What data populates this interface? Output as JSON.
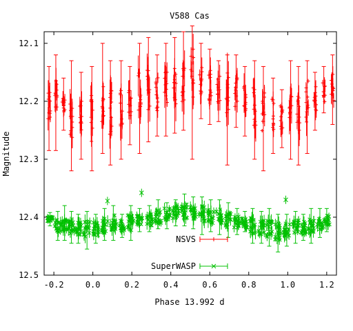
{
  "chart_data": {
    "type": "scatter",
    "title": "V588 Cas",
    "xlabel": "Phase 13.992 d",
    "ylabel": "Magnitude",
    "xlim": [
      -0.25,
      1.25
    ],
    "ylim": [
      12.5,
      12.08
    ],
    "y_inverted": true,
    "xticks": [
      -0.2,
      0.0,
      0.2,
      0.4,
      0.6,
      0.8,
      1.0,
      1.2
    ],
    "xtick_labels": [
      "-0.2",
      "0.0",
      "0.2",
      "0.4",
      "0.6",
      "0.8",
      "1.0",
      "1.2"
    ],
    "yticks": [
      12.1,
      12.2,
      12.3,
      12.4,
      12.5
    ],
    "ytick_labels": [
      "12.1",
      "12.2",
      "12.3",
      "12.4",
      "12.5"
    ],
    "grid": false,
    "legend_position": "bottom-center",
    "series": [
      {
        "name": "NSVS",
        "color": "#ff0000",
        "marker": "plus",
        "error_bars": true,
        "clusters": [
          {
            "x": -0.225,
            "y": 12.205,
            "low": 12.14,
            "high": 12.285
          },
          {
            "x": -0.19,
            "y": 12.195,
            "low": 12.12,
            "high": 12.285
          },
          {
            "x": -0.15,
            "y": 12.21,
            "low": 12.16,
            "high": 12.25
          },
          {
            "x": -0.11,
            "y": 12.22,
            "low": 12.13,
            "high": 12.32
          },
          {
            "x": -0.06,
            "y": 12.225,
            "low": 12.15,
            "high": 12.3
          },
          {
            "x": -0.005,
            "y": 12.23,
            "low": 12.14,
            "high": 12.32
          },
          {
            "x": 0.05,
            "y": 12.215,
            "low": 12.1,
            "high": 12.29
          },
          {
            "x": 0.09,
            "y": 12.22,
            "low": 12.13,
            "high": 12.31
          },
          {
            "x": 0.145,
            "y": 12.215,
            "low": 12.13,
            "high": 12.3
          },
          {
            "x": 0.19,
            "y": 12.2,
            "low": 12.14,
            "high": 12.275
          },
          {
            "x": 0.24,
            "y": 12.19,
            "low": 12.1,
            "high": 12.29
          },
          {
            "x": 0.285,
            "y": 12.185,
            "low": 12.09,
            "high": 12.27
          },
          {
            "x": 0.33,
            "y": 12.19,
            "low": 12.12,
            "high": 12.26
          },
          {
            "x": 0.375,
            "y": 12.18,
            "low": 12.1,
            "high": 12.26
          },
          {
            "x": 0.42,
            "y": 12.17,
            "low": 12.09,
            "high": 12.255
          },
          {
            "x": 0.465,
            "y": 12.165,
            "low": 12.08,
            "high": 12.25
          },
          {
            "x": 0.51,
            "y": 12.16,
            "low": 12.07,
            "high": 12.3
          },
          {
            "x": 0.555,
            "y": 12.165,
            "low": 12.1,
            "high": 12.23
          },
          {
            "x": 0.6,
            "y": 12.175,
            "low": 12.11,
            "high": 12.24
          },
          {
            "x": 0.645,
            "y": 12.18,
            "low": 12.13,
            "high": 12.235
          },
          {
            "x": 0.69,
            "y": 12.18,
            "low": 12.12,
            "high": 12.31
          },
          {
            "x": 0.735,
            "y": 12.185,
            "low": 12.12,
            "high": 12.245
          },
          {
            "x": 0.78,
            "y": 12.2,
            "low": 12.14,
            "high": 12.26
          },
          {
            "x": 0.83,
            "y": 12.215,
            "low": 12.13,
            "high": 12.3
          },
          {
            "x": 0.875,
            "y": 12.22,
            "low": 12.14,
            "high": 12.32
          },
          {
            "x": 0.925,
            "y": 12.225,
            "low": 12.16,
            "high": 12.29
          },
          {
            "x": 0.97,
            "y": 12.23,
            "low": 12.18,
            "high": 12.28
          },
          {
            "x": 1.015,
            "y": 12.215,
            "low": 12.13,
            "high": 12.3
          },
          {
            "x": 1.055,
            "y": 12.215,
            "low": 12.14,
            "high": 12.31
          },
          {
            "x": 1.1,
            "y": 12.2,
            "low": 12.13,
            "high": 12.29
          },
          {
            "x": 1.14,
            "y": 12.195,
            "low": 12.15,
            "high": 12.25
          },
          {
            "x": 1.185,
            "y": 12.185,
            "low": 12.14,
            "high": 12.22
          },
          {
            "x": 1.23,
            "y": 12.18,
            "low": 12.12,
            "high": 12.24
          }
        ]
      },
      {
        "name": "SuperWASP",
        "color": "#00c000",
        "marker": "cross",
        "error_bars": true,
        "clusters": [
          {
            "x": -0.22,
            "y": 12.402,
            "low": 12.392,
            "high": 12.415
          },
          {
            "x": -0.18,
            "y": 12.415,
            "low": 12.39,
            "high": 12.44
          },
          {
            "x": -0.145,
            "y": 12.41,
            "low": 12.38,
            "high": 12.44
          },
          {
            "x": -0.11,
            "y": 12.418,
            "low": 12.39,
            "high": 12.445
          },
          {
            "x": -0.075,
            "y": 12.42,
            "low": 12.395,
            "high": 12.445
          },
          {
            "x": -0.03,
            "y": 12.422,
            "low": 12.39,
            "high": 12.455
          },
          {
            "x": 0.015,
            "y": 12.42,
            "low": 12.395,
            "high": 12.445
          },
          {
            "x": 0.06,
            "y": 12.415,
            "low": 12.385,
            "high": 12.44
          },
          {
            "x": 0.105,
            "y": 12.41,
            "low": 12.38,
            "high": 12.44
          },
          {
            "x": 0.15,
            "y": 12.415,
            "low": 12.395,
            "high": 12.435
          },
          {
            "x": 0.195,
            "y": 12.41,
            "low": 12.38,
            "high": 12.44
          },
          {
            "x": 0.24,
            "y": 12.405,
            "low": 12.385,
            "high": 12.425
          },
          {
            "x": 0.29,
            "y": 12.405,
            "low": 12.38,
            "high": 12.425
          },
          {
            "x": 0.335,
            "y": 12.4,
            "low": 12.37,
            "high": 12.42
          },
          {
            "x": 0.38,
            "y": 12.395,
            "low": 12.375,
            "high": 12.42
          },
          {
            "x": 0.425,
            "y": 12.392,
            "low": 12.37,
            "high": 12.415
          },
          {
            "x": 0.47,
            "y": 12.39,
            "low": 12.36,
            "high": 12.415
          },
          {
            "x": 0.515,
            "y": 12.392,
            "low": 12.365,
            "high": 12.42
          },
          {
            "x": 0.56,
            "y": 12.395,
            "low": 12.365,
            "high": 12.43
          },
          {
            "x": 0.605,
            "y": 12.398,
            "low": 12.37,
            "high": 12.425
          },
          {
            "x": 0.65,
            "y": 12.4,
            "low": 12.37,
            "high": 12.43
          },
          {
            "x": 0.695,
            "y": 12.405,
            "low": 12.375,
            "high": 12.435
          },
          {
            "x": 0.74,
            "y": 12.408,
            "low": 12.385,
            "high": 12.43
          },
          {
            "x": 0.78,
            "y": 12.41,
            "low": 12.39,
            "high": 12.425
          },
          {
            "x": 0.82,
            "y": 12.415,
            "low": 12.385,
            "high": 12.445
          },
          {
            "x": 0.865,
            "y": 12.418,
            "low": 12.39,
            "high": 12.445
          },
          {
            "x": 0.905,
            "y": 12.42,
            "low": 12.385,
            "high": 12.45
          },
          {
            "x": 0.95,
            "y": 12.425,
            "low": 12.395,
            "high": 12.46
          },
          {
            "x": 0.995,
            "y": 12.42,
            "low": 12.395,
            "high": 12.45
          },
          {
            "x": 1.04,
            "y": 12.415,
            "low": 12.39,
            "high": 12.445
          },
          {
            "x": 1.08,
            "y": 12.418,
            "low": 12.395,
            "high": 12.44
          },
          {
            "x": 1.12,
            "y": 12.415,
            "low": 12.385,
            "high": 12.445
          },
          {
            "x": 1.165,
            "y": 12.41,
            "low": 12.385,
            "high": 12.435
          },
          {
            "x": 1.2,
            "y": 12.405,
            "low": 12.385,
            "high": 12.425
          }
        ],
        "outliers": [
          {
            "x": 0.25,
            "y": 12.358
          },
          {
            "x": 0.075,
            "y": 12.372
          },
          {
            "x": 0.99,
            "y": 12.37
          }
        ]
      }
    ]
  }
}
